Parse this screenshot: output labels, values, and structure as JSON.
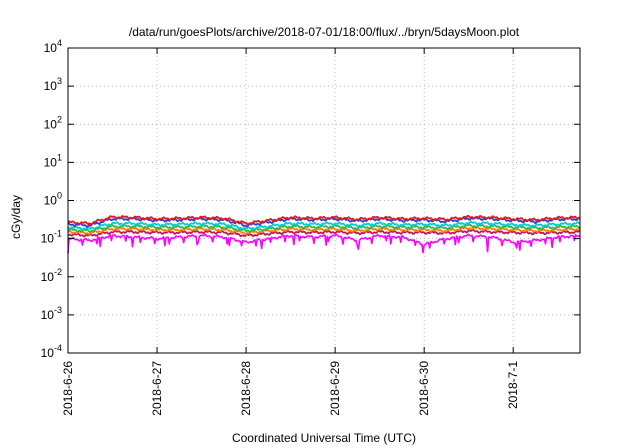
{
  "chart_data": {
    "type": "line",
    "title": "/data/run/goesPlots/archive/2018-07-01/18:00/flux/../bryn/5daysMoon.plot",
    "xlabel": "Coordinated Universal Time (UTC)",
    "ylabel": "cGy/day",
    "y_scale": "log",
    "ylim": [
      0.0001,
      10000
    ],
    "xlim": [
      "2018-06-26 00:00",
      "2018-07-01 18:00"
    ],
    "grid": true,
    "legend": "none",
    "x_ticks": [
      "2018-6-26",
      "2018-6-27",
      "2018-6-28",
      "2018-6-29",
      "2018-6-30",
      "2018-7-1"
    ],
    "y_ticks": [
      {
        "base": "10",
        "exp": "-4",
        "value": 0.0001
      },
      {
        "base": "10",
        "exp": "-3",
        "value": 0.001
      },
      {
        "base": "10",
        "exp": "-2",
        "value": 0.01
      },
      {
        "base": "10",
        "exp": "-1",
        "value": 0.1
      },
      {
        "base": "10",
        "exp": "0",
        "value": 1
      },
      {
        "base": "10",
        "exp": "1",
        "value": 10
      },
      {
        "base": "10",
        "exp": "2",
        "value": 100
      },
      {
        "base": "10",
        "exp": "3",
        "value": 1000
      },
      {
        "base": "10",
        "exp": "4",
        "value": 10000
      }
    ],
    "x_days": [
      0,
      0.25,
      0.5,
      0.75,
      1,
      1.25,
      1.5,
      1.75,
      2,
      2.25,
      2.5,
      2.75,
      3,
      3.25,
      3.5,
      3.75,
      4,
      4.25,
      4.5,
      4.75,
      5,
      5.25,
      5.5,
      5.75
    ],
    "series": [
      {
        "color": "#e41a1c",
        "values": [
          0.27,
          0.25,
          0.37,
          0.36,
          0.33,
          0.34,
          0.36,
          0.34,
          0.25,
          0.3,
          0.36,
          0.34,
          0.36,
          0.32,
          0.36,
          0.33,
          0.34,
          0.32,
          0.37,
          0.36,
          0.33,
          0.31,
          0.35,
          0.36
        ]
      },
      {
        "color": "#2f3fd0",
        "values": [
          0.24,
          0.22,
          0.33,
          0.33,
          0.3,
          0.31,
          0.33,
          0.31,
          0.22,
          0.27,
          0.33,
          0.31,
          0.33,
          0.29,
          0.33,
          0.3,
          0.31,
          0.28,
          0.34,
          0.33,
          0.3,
          0.28,
          0.32,
          0.33
        ]
      },
      {
        "color": "#00ced1",
        "values": [
          0.2,
          0.18,
          0.25,
          0.25,
          0.23,
          0.24,
          0.25,
          0.24,
          0.18,
          0.21,
          0.25,
          0.24,
          0.25,
          0.22,
          0.25,
          0.23,
          0.24,
          0.22,
          0.26,
          0.25,
          0.23,
          0.22,
          0.24,
          0.25
        ]
      },
      {
        "color": "#3cb44b",
        "values": [
          0.17,
          0.16,
          0.21,
          0.21,
          0.2,
          0.2,
          0.21,
          0.2,
          0.16,
          0.18,
          0.21,
          0.2,
          0.21,
          0.19,
          0.21,
          0.2,
          0.2,
          0.19,
          0.22,
          0.21,
          0.2,
          0.19,
          0.2,
          0.21
        ]
      },
      {
        "color": "#ff7f00",
        "values": [
          0.15,
          0.14,
          0.18,
          0.18,
          0.17,
          0.17,
          0.18,
          0.17,
          0.14,
          0.16,
          0.18,
          0.17,
          0.18,
          0.16,
          0.18,
          0.17,
          0.17,
          0.16,
          0.19,
          0.18,
          0.17,
          0.16,
          0.17,
          0.18
        ]
      },
      {
        "color": "#c2185b",
        "values": [
          0.13,
          0.12,
          0.15,
          0.15,
          0.145,
          0.145,
          0.15,
          0.145,
          0.12,
          0.135,
          0.15,
          0.145,
          0.15,
          0.14,
          0.15,
          0.145,
          0.145,
          0.14,
          0.16,
          0.15,
          0.145,
          0.14,
          0.145,
          0.15
        ]
      },
      {
        "color": "#ff00ff",
        "values": [
          0.1,
          0.09,
          0.12,
          0.11,
          0.1,
          0.11,
          0.12,
          0.11,
          0.08,
          0.1,
          0.12,
          0.11,
          0.12,
          0.09,
          0.12,
          0.11,
          0.07,
          0.1,
          0.12,
          0.11,
          0.08,
          0.09,
          0.11,
          0.12
        ]
      }
    ]
  }
}
